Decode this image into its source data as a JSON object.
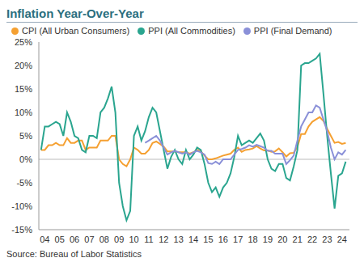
{
  "chart_data": {
    "type": "line",
    "title": "Inflation Year-Over-Year",
    "source": "Source: Bureau of Labor Statistics",
    "legend": "top",
    "grid": false,
    "x": [
      2003.75,
      2004,
      2004.25,
      2004.5,
      2004.75,
      2005,
      2005.25,
      2005.5,
      2005.75,
      2006,
      2006.25,
      2006.5,
      2006.75,
      2007,
      2007.25,
      2007.5,
      2007.75,
      2008,
      2008.25,
      2008.5,
      2008.75,
      2009,
      2009.25,
      2009.5,
      2009.75,
      2010,
      2010.25,
      2010.5,
      2010.75,
      2011,
      2011.25,
      2011.5,
      2011.75,
      2012,
      2012.25,
      2012.5,
      2012.75,
      2013,
      2013.25,
      2013.5,
      2013.75,
      2014,
      2014.25,
      2014.5,
      2014.75,
      2015,
      2015.25,
      2015.5,
      2015.75,
      2016,
      2016.25,
      2016.5,
      2016.75,
      2017,
      2017.25,
      2017.5,
      2017.75,
      2018,
      2018.25,
      2018.5,
      2018.75,
      2019,
      2019.25,
      2019.5,
      2019.75,
      2020,
      2020.25,
      2020.5,
      2020.75,
      2021,
      2021.25,
      2021.5,
      2021.75,
      2022,
      2022.25,
      2022.5,
      2022.75,
      2023,
      2023.25,
      2023.5,
      2023.75,
      2024,
      2024.25
    ],
    "series": [
      {
        "name": "CPI (All Urban Consumers)",
        "color": "#f5a031",
        "values": [
          2,
          2,
          3,
          3,
          3.5,
          3,
          3,
          4.5,
          3.5,
          3.5,
          4,
          4,
          2,
          2.5,
          2.5,
          2.5,
          4,
          4,
          4,
          5,
          5,
          0,
          -1,
          -1.5,
          0,
          2.5,
          2,
          1.2,
          1.2,
          2,
          3.5,
          3.8,
          3.3,
          2.7,
          1.7,
          1.7,
          1.7,
          1.5,
          1.5,
          1.5,
          1.2,
          1.5,
          2,
          1.7,
          0.8,
          0,
          0,
          0.2,
          0.5,
          0.8,
          1,
          1.2,
          2,
          2.5,
          1.6,
          2,
          2.1,
          2.3,
          2.8,
          2.3,
          1.9,
          1.9,
          1.6,
          1.7,
          2.3,
          1.5,
          0.6,
          1.3,
          1.4,
          2.6,
          5.4,
          5.4,
          7,
          8,
          8.5,
          9,
          8.2,
          6.5,
          5,
          3.5,
          3.7,
          3.3,
          3.5
        ]
      },
      {
        "name": "PPI (All Commodities)",
        "color": "#2aa58f",
        "values": [
          2,
          7,
          7,
          7.5,
          8,
          7.5,
          5,
          10,
          8,
          5,
          4.5,
          2,
          1.5,
          5,
          5,
          4.5,
          10,
          11,
          13,
          15.5,
          10,
          -5,
          -10,
          -13,
          -11,
          5,
          7,
          4,
          6,
          9,
          11,
          10,
          6,
          2,
          -2,
          0.5,
          2,
          0,
          -1,
          2,
          0,
          1,
          2.5,
          2,
          -1,
          -5,
          -7,
          -6,
          -8,
          -6,
          -5,
          -3,
          0.5,
          5,
          3,
          3.5,
          4,
          3.5,
          4.5,
          5.5,
          4,
          0,
          -2,
          -2.5,
          -1,
          -1,
          -4,
          -4.5,
          -1.5,
          2,
          20,
          20.5,
          20.5,
          21,
          21.5,
          22.5,
          14,
          5,
          -3,
          -10.5,
          -3.5,
          -3,
          -0.5
        ]
      },
      {
        "name": "PPI (Final Demand)",
        "color": "#8a90d8",
        "values": [
          null,
          null,
          null,
          null,
          null,
          null,
          null,
          null,
          null,
          null,
          null,
          null,
          null,
          null,
          null,
          null,
          null,
          null,
          null,
          null,
          null,
          null,
          null,
          null,
          null,
          null,
          null,
          null,
          3.5,
          4,
          4.5,
          5,
          4,
          2.5,
          1,
          1.5,
          1.8,
          1.5,
          1.2,
          1.5,
          1,
          1.5,
          1.8,
          1.5,
          1,
          -0.8,
          -1,
          -0.5,
          -1,
          0,
          0,
          0,
          1,
          2,
          2.2,
          2.5,
          3,
          2.7,
          3.1,
          2.8,
          2.5,
          1.8,
          1.8,
          1.2,
          1.2,
          1.2,
          -1,
          -0.2,
          0.8,
          4,
          7,
          8.5,
          10,
          10,
          11.5,
          11,
          8.5,
          6,
          2.5,
          0,
          1.5,
          1,
          2
        ]
      }
    ],
    "xlim": [
      2003.6,
      2024.5
    ],
    "xticks": [
      {
        "value": 2004,
        "label": "04"
      },
      {
        "value": 2005,
        "label": "05"
      },
      {
        "value": 2006,
        "label": "06"
      },
      {
        "value": 2007,
        "label": "07"
      },
      {
        "value": 2008,
        "label": "08"
      },
      {
        "value": 2009,
        "label": "09"
      },
      {
        "value": 2010,
        "label": "10"
      },
      {
        "value": 2011,
        "label": "11"
      },
      {
        "value": 2012,
        "label": "12"
      },
      {
        "value": 2013,
        "label": "13"
      },
      {
        "value": 2014,
        "label": "14"
      },
      {
        "value": 2015,
        "label": "15"
      },
      {
        "value": 2016,
        "label": "16"
      },
      {
        "value": 2017,
        "label": "17"
      },
      {
        "value": 2018,
        "label": "18"
      },
      {
        "value": 2019,
        "label": "19"
      },
      {
        "value": 2020,
        "label": "20"
      },
      {
        "value": 2021,
        "label": "21"
      },
      {
        "value": 2022,
        "label": "22"
      },
      {
        "value": 2023,
        "label": "23"
      },
      {
        "value": 2024,
        "label": "24"
      }
    ],
    "ylim": [
      -15,
      25
    ],
    "yticks": [
      {
        "value": -15,
        "label": "-15%"
      },
      {
        "value": -10,
        "label": "-10%"
      },
      {
        "value": -5,
        "label": "-5%"
      },
      {
        "value": 0,
        "label": "0%"
      },
      {
        "value": 5,
        "label": "5%"
      },
      {
        "value": 10,
        "label": "10%"
      },
      {
        "value": 15,
        "label": "15%"
      },
      {
        "value": 20,
        "label": "20%"
      },
      {
        "value": 25,
        "label": "25%"
      }
    ]
  }
}
